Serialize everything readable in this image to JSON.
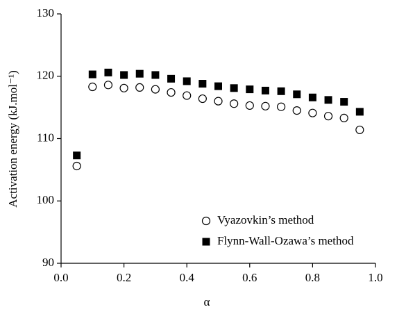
{
  "chart_data": {
    "type": "scatter",
    "xlabel": "α",
    "ylabel": "Activation energy  (kJ.mol⁻¹)",
    "x": [
      0.05,
      0.1,
      0.15,
      0.2,
      0.25,
      0.3,
      0.35,
      0.4,
      0.45,
      0.5,
      0.55,
      0.6,
      0.65,
      0.7,
      0.75,
      0.8,
      0.85,
      0.9,
      0.95
    ],
    "series": [
      {
        "name": "Vyazovkin’s method",
        "color": "#000000",
        "marker": "open-circle",
        "values": [
          105.6,
          118.3,
          118.6,
          118.1,
          118.2,
          117.9,
          117.4,
          116.9,
          116.4,
          116.0,
          115.6,
          115.3,
          115.2,
          115.1,
          114.5,
          114.1,
          113.6,
          113.3,
          111.4
        ]
      },
      {
        "name": "Flynn-Wall-Ozawa’s method",
        "color": "#000000",
        "marker": "filled-square",
        "values": [
          107.3,
          120.3,
          120.6,
          120.2,
          120.4,
          120.2,
          119.6,
          119.2,
          118.8,
          118.4,
          118.1,
          117.9,
          117.7,
          117.6,
          117.1,
          116.6,
          116.2,
          115.9,
          114.3
        ]
      }
    ],
    "xlim": [
      0,
      1
    ],
    "xticks": [
      {
        "value": 0,
        "label": "0.0"
      },
      0.2,
      0.4,
      0.6,
      0.8,
      {
        "value": 1,
        "label": "1.0"
      }
    ],
    "ylim": [
      90,
      130
    ],
    "yticks": [
      90,
      100,
      110,
      120,
      130
    ],
    "legend": "lower-right"
  }
}
